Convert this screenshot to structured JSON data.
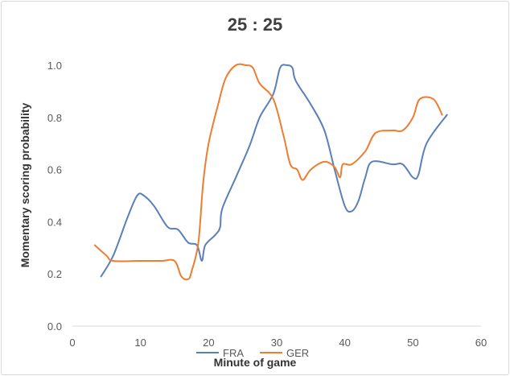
{
  "chart_data": {
    "type": "line",
    "title": "25 : 25",
    "xlabel": "Minute of game",
    "ylabel": "Momentary scoring probability",
    "xlim": [
      0,
      60
    ],
    "ylim": [
      0.0,
      1.0
    ],
    "x_ticks": [
      "0",
      "10",
      "20",
      "30",
      "40",
      "50",
      "60"
    ],
    "y_ticks": [
      "0.0",
      "0.2",
      "0.4",
      "0.6",
      "0.8",
      "1.0"
    ],
    "grid": false,
    "legend_position": "bottom",
    "series": [
      {
        "name": "FRA",
        "color": "#5B7FB8",
        "points": [
          [
            4.2,
            0.19
          ],
          [
            6,
            0.27
          ],
          [
            8,
            0.41
          ],
          [
            9.5,
            0.5
          ],
          [
            10.5,
            0.5
          ],
          [
            12,
            0.46
          ],
          [
            14,
            0.38
          ],
          [
            15.5,
            0.37
          ],
          [
            17,
            0.32
          ],
          [
            18.3,
            0.31
          ],
          [
            19,
            0.25
          ],
          [
            19.5,
            0.31
          ],
          [
            21,
            0.35
          ],
          [
            21.7,
            0.38
          ],
          [
            22,
            0.45
          ],
          [
            24,
            0.57
          ],
          [
            26,
            0.69
          ],
          [
            27.5,
            0.8
          ],
          [
            29.5,
            0.89
          ],
          [
            30.5,
            0.99
          ],
          [
            31.5,
            1.0
          ],
          [
            32.3,
            0.99
          ],
          [
            32.8,
            0.94
          ],
          [
            35,
            0.85
          ],
          [
            37,
            0.75
          ],
          [
            38.5,
            0.6
          ],
          [
            40,
            0.46
          ],
          [
            41,
            0.44
          ],
          [
            42,
            0.48
          ],
          [
            43,
            0.57
          ],
          [
            44,
            0.63
          ],
          [
            47,
            0.62
          ],
          [
            48.5,
            0.62
          ],
          [
            50,
            0.57
          ],
          [
            50.8,
            0.58
          ],
          [
            52,
            0.7
          ],
          [
            55,
            0.81
          ]
        ]
      },
      {
        "name": "GER",
        "color": "#ED7D31",
        "points": [
          [
            3.3,
            0.31
          ],
          [
            5,
            0.27
          ],
          [
            6,
            0.25
          ],
          [
            10,
            0.25
          ],
          [
            13,
            0.25
          ],
          [
            15,
            0.25
          ],
          [
            16,
            0.19
          ],
          [
            17,
            0.18
          ],
          [
            17.5,
            0.21
          ],
          [
            18.5,
            0.32
          ],
          [
            19.2,
            0.55
          ],
          [
            20,
            0.7
          ],
          [
            21.5,
            0.86
          ],
          [
            22.5,
            0.95
          ],
          [
            24,
            1.0
          ],
          [
            25.5,
            1.0
          ],
          [
            26.5,
            0.99
          ],
          [
            27.5,
            0.93
          ],
          [
            29.5,
            0.87
          ],
          [
            31,
            0.73
          ],
          [
            32,
            0.62
          ],
          [
            33,
            0.6
          ],
          [
            33.8,
            0.56
          ],
          [
            35,
            0.6
          ],
          [
            37,
            0.63
          ],
          [
            38.5,
            0.61
          ],
          [
            39.3,
            0.57
          ],
          [
            39.7,
            0.62
          ],
          [
            41,
            0.62
          ],
          [
            43,
            0.67
          ],
          [
            44.5,
            0.74
          ],
          [
            47,
            0.75
          ],
          [
            48.5,
            0.75
          ],
          [
            50,
            0.8
          ],
          [
            51,
            0.87
          ],
          [
            53,
            0.87
          ],
          [
            54.3,
            0.81
          ]
        ]
      }
    ]
  }
}
